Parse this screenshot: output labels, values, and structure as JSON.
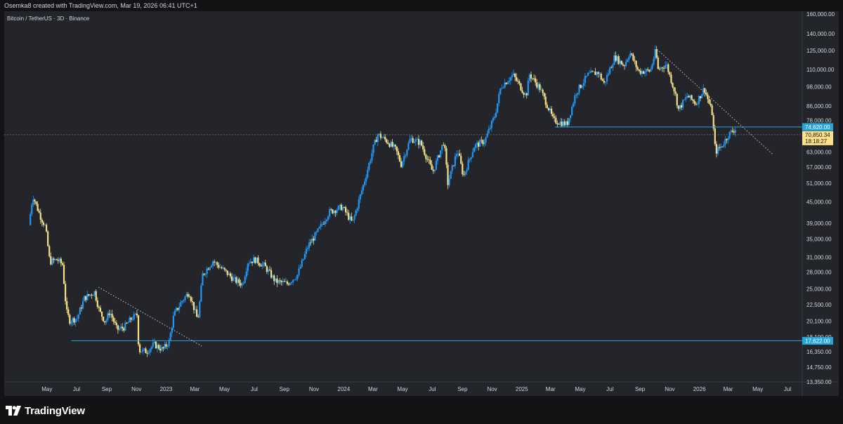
{
  "header": {
    "text": "Osemka8 created with TradingView.com, Mar 19, 2026 06:41 UTC+1"
  },
  "symbol": {
    "text": "Bitcoin / TetherUS · 3D · Binance"
  },
  "footer": {
    "logo_text": "TradingView"
  },
  "colors": {
    "background": "#23252b",
    "up_candle": "#2196f3",
    "down_candle": "#f5e08a",
    "horizontal_line": "#26a6d8",
    "trendline": "#c8c8c8",
    "price_label_bg": "#ffe08a"
  },
  "chart_data": {
    "type": "candlestick",
    "title": "Bitcoin / TetherUS · 3D · Binance",
    "y_scale": "log",
    "ylim": [
      12500,
      165000
    ],
    "y_ticks": [
      "160,000.00",
      "140,000.00",
      "125,000.00",
      "110,000.00",
      "98,000.00",
      "86,000.00",
      "78,000.00",
      "70,000.00",
      "63,000.00",
      "57,000.00",
      "51,000.00",
      "45,000.00",
      "39,000.00",
      "35,000.00",
      "31,000.00",
      "28,000.00",
      "25,000.00",
      "22,500.00",
      "20,100.00",
      "18,100.00",
      "16,350.00",
      "14,750.00",
      "13,350.00"
    ],
    "y_tick_values": [
      160000,
      140000,
      125000,
      110000,
      98000,
      86000,
      78000,
      70000,
      63000,
      57000,
      51000,
      45000,
      39000,
      35000,
      31000,
      28000,
      25000,
      22500,
      20100,
      18100,
      16350,
      14750,
      13350
    ],
    "x_ticks": [
      "May",
      "Jul",
      "Sep",
      "Nov",
      "2023",
      "Mar",
      "May",
      "Jul",
      "Sep",
      "Nov",
      "2024",
      "Mar",
      "May",
      "Jul",
      "Sep",
      "Nov",
      "2025",
      "Mar",
      "May",
      "Jul",
      "Sep",
      "Nov",
      "2026",
      "Mar",
      "May",
      "Jul"
    ],
    "x_tick_dates": [
      "2022-05-01",
      "2022-07-01",
      "2022-09-01",
      "2022-11-01",
      "2023-01-01",
      "2023-03-01",
      "2023-05-01",
      "2023-07-01",
      "2023-09-01",
      "2023-11-01",
      "2024-01-01",
      "2024-03-01",
      "2024-05-01",
      "2024-07-01",
      "2024-09-01",
      "2024-11-01",
      "2025-01-01",
      "2025-03-01",
      "2025-05-01",
      "2025-07-01",
      "2025-09-01",
      "2025-11-01",
      "2026-01-01",
      "2026-03-01",
      "2026-05-01",
      "2026-07-01"
    ],
    "x_range": [
      "2022-03-28",
      "2026-08-15"
    ],
    "price_series": [
      [
        "2022-03-28",
        38500
      ],
      [
        "2022-04-05",
        47000
      ],
      [
        "2022-04-20",
        41000
      ],
      [
        "2022-05-01",
        38000
      ],
      [
        "2022-05-10",
        30000
      ],
      [
        "2022-05-25",
        30500
      ],
      [
        "2022-06-05",
        29500
      ],
      [
        "2022-06-13",
        21500
      ],
      [
        "2022-06-20",
        20200
      ],
      [
        "2022-07-05",
        20500
      ],
      [
        "2022-07-20",
        23500
      ],
      [
        "2022-08-10",
        24500
      ],
      [
        "2022-08-20",
        21500
      ],
      [
        "2022-09-01",
        20000
      ],
      [
        "2022-09-10",
        21500
      ],
      [
        "2022-09-25",
        19000
      ],
      [
        "2022-10-10",
        19300
      ],
      [
        "2022-10-25",
        20500
      ],
      [
        "2022-11-05",
        21000
      ],
      [
        "2022-11-09",
        16500
      ],
      [
        "2022-11-25",
        16400
      ],
      [
        "2022-12-10",
        17200
      ],
      [
        "2022-12-28",
        16600
      ],
      [
        "2023-01-10",
        17500
      ],
      [
        "2023-01-20",
        21000
      ],
      [
        "2023-02-05",
        23000
      ],
      [
        "2023-02-20",
        24500
      ],
      [
        "2023-03-10",
        20200
      ],
      [
        "2023-03-20",
        27500
      ],
      [
        "2023-04-10",
        30200
      ],
      [
        "2023-05-01",
        28500
      ],
      [
        "2023-05-25",
        26500
      ],
      [
        "2023-06-10",
        25800
      ],
      [
        "2023-06-21",
        30000
      ],
      [
        "2023-07-05",
        30500
      ],
      [
        "2023-07-25",
        29200
      ],
      [
        "2023-08-17",
        26300
      ],
      [
        "2023-09-10",
        25900
      ],
      [
        "2023-10-01",
        27500
      ],
      [
        "2023-10-23",
        33500
      ],
      [
        "2023-11-10",
        36500
      ],
      [
        "2023-12-05",
        42000
      ],
      [
        "2024-01-01",
        43500
      ],
      [
        "2024-01-22",
        39000
      ],
      [
        "2024-02-15",
        51500
      ],
      [
        "2024-03-05",
        65000
      ],
      [
        "2024-03-14",
        71000
      ],
      [
        "2024-04-01",
        68000
      ],
      [
        "2024-04-20",
        64000
      ],
      [
        "2024-05-01",
        58000
      ],
      [
        "2024-05-20",
        69000
      ],
      [
        "2024-06-10",
        67000
      ],
      [
        "2024-07-05",
        55000
      ],
      [
        "2024-07-28",
        68000
      ],
      [
        "2024-08-05",
        51000
      ],
      [
        "2024-08-25",
        64000
      ],
      [
        "2024-09-06",
        53500
      ],
      [
        "2024-09-28",
        65500
      ],
      [
        "2024-10-20",
        68000
      ],
      [
        "2024-11-10",
        81000
      ],
      [
        "2024-11-22",
        98000
      ],
      [
        "2024-12-17",
        106000
      ],
      [
        "2025-01-13",
        92000
      ],
      [
        "2025-01-20",
        106500
      ],
      [
        "2025-02-10",
        97000
      ],
      [
        "2025-03-01",
        84000
      ],
      [
        "2025-03-10",
        78000
      ],
      [
        "2025-04-07",
        76000
      ],
      [
        "2025-04-25",
        94000
      ],
      [
        "2025-05-20",
        106000
      ],
      [
        "2025-06-10",
        108000
      ],
      [
        "2025-06-22",
        100000
      ],
      [
        "2025-07-14",
        120000
      ],
      [
        "2025-08-02",
        113000
      ],
      [
        "2025-08-14",
        123500
      ],
      [
        "2025-09-01",
        108500
      ],
      [
        "2025-09-25",
        109000
      ],
      [
        "2025-10-06",
        125000
      ],
      [
        "2025-10-11",
        110000
      ],
      [
        "2025-10-28",
        114000
      ],
      [
        "2025-11-15",
        94000
      ],
      [
        "2025-11-22",
        84000
      ],
      [
        "2025-12-10",
        92000
      ],
      [
        "2025-12-28",
        87500
      ],
      [
        "2026-01-14",
        97000
      ],
      [
        "2026-01-30",
        82000
      ],
      [
        "2026-02-06",
        63000
      ],
      [
        "2026-02-20",
        66000
      ],
      [
        "2026-03-05",
        71000
      ],
      [
        "2026-03-18",
        73500
      ]
    ],
    "horizontal_levels": [
      {
        "value": 74620.0,
        "label": "74,620.00",
        "start": "2025-03-10"
      },
      {
        "value": 17622.0,
        "label": "17,622.00",
        "start": "2022-06-20"
      }
    ],
    "trendlines": [
      {
        "from": [
          "2022-08-15",
          25300
        ],
        "to": [
          "2023-03-15",
          17000
        ]
      },
      {
        "from": [
          "2025-10-06",
          126000
        ],
        "to": [
          "2026-06-01",
          62000
        ]
      }
    ],
    "current_price": {
      "value": 70850.34,
      "label": "70,850.34",
      "countdown": "18:18:27"
    }
  }
}
